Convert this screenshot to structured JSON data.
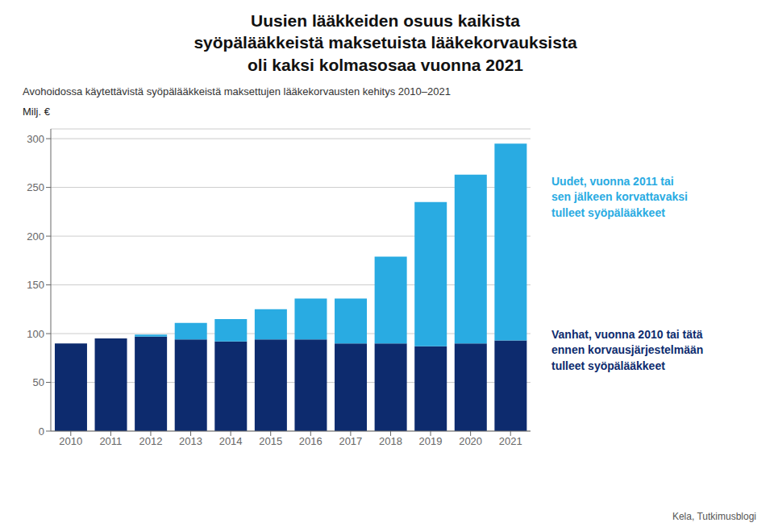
{
  "chart_data": {
    "type": "bar",
    "stacked": true,
    "title": "Uusien lääkkeiden osuus kaikista\nsyöpälääkkeistä maksetuista lääkekorvauksista\noli kaksi kolmasosaa vuonna 2021",
    "subtitle": "Avohoidossa käytettävistä syöpälääkkeistä maksettujen lääkekorvausten kehitys 2010–2021",
    "ylabel": "Milj. €",
    "source": "Kela, Tutkimusblogi",
    "categories": [
      "2010",
      "2011",
      "2012",
      "2013",
      "2014",
      "2015",
      "2016",
      "2017",
      "2018",
      "2019",
      "2020",
      "2021"
    ],
    "series": [
      {
        "name": "Vanhat, vuonna 2010 tai tätä\nennen korvausjärjestelmään\ntulleet syöpälääkkeet",
        "color": "#0d2b6e",
        "values": [
          90,
          95,
          97,
          94,
          92,
          94,
          94,
          90,
          90,
          87,
          90,
          93
        ]
      },
      {
        "name": "Uudet, vuonna 2011 tai\nsen jälkeen korvattavaksi\ntulleet syöpälääkkeet",
        "color": "#29abe2",
        "values": [
          0,
          0,
          2,
          17,
          23,
          31,
          42,
          46,
          89,
          148,
          173,
          202
        ]
      }
    ],
    "ylim": [
      0,
      310
    ],
    "yticks": [
      0,
      50,
      100,
      150,
      200,
      250,
      300
    ],
    "grid": true
  }
}
